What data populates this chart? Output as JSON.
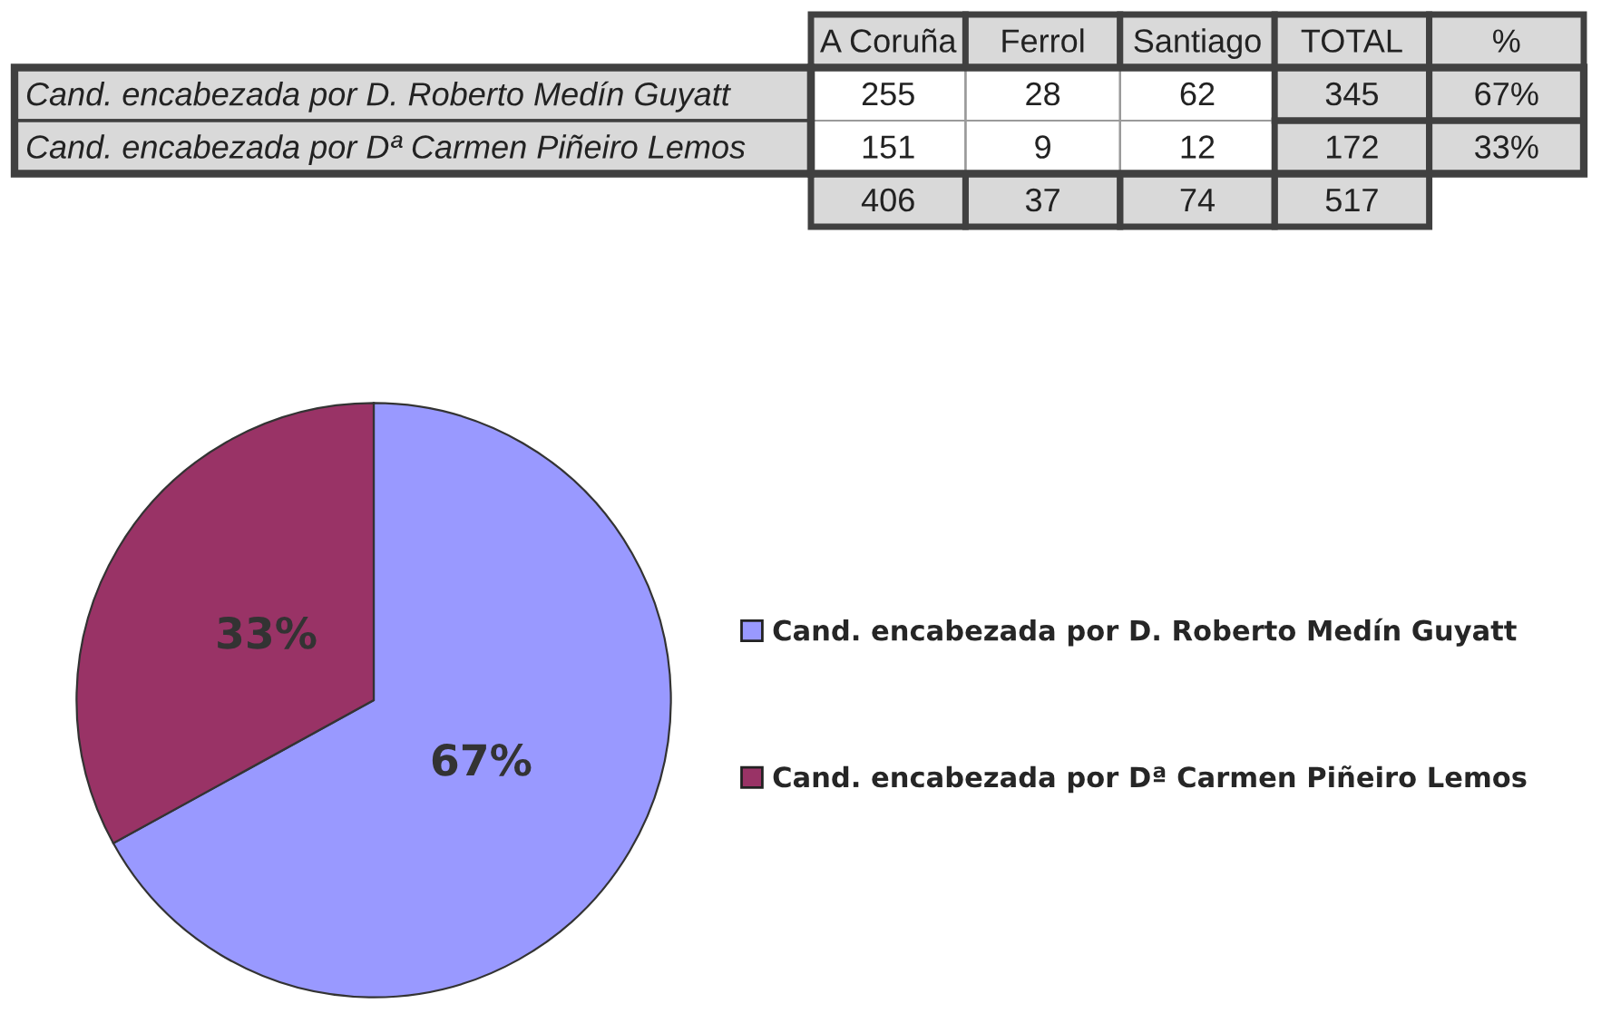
{
  "chart_data": [
    {
      "type": "heatmap",
      "categories": [
        "A Coruña",
        "Ferrol",
        "Santiago",
        "TOTAL",
        "%"
      ],
      "y_categories": [
        "Cand. encabezada por D. Roberto Medín Guyatt",
        "Cand. encabezada por Dª Carmen Piñeiro Lemos",
        null
      ],
      "cells": [
        [
          255,
          28,
          62,
          345,
          67
        ],
        [
          151,
          9,
          12,
          172,
          33
        ],
        [
          406,
          37,
          74,
          517,
          null
        ]
      ],
      "cell_labels": [
        [
          "255",
          "28",
          "62",
          "345",
          "67%"
        ],
        [
          "151",
          "9",
          "12",
          "172",
          "33%"
        ],
        [
          "406",
          "37",
          "74",
          "517",
          null
        ]
      ]
    },
    {
      "type": "pie",
      "categories": [
        "Cand. encabezada por D. Roberto Medín Guyatt",
        "Cand. encabezada por Dª Carmen Piñeiro Lemos"
      ],
      "values": [
        67,
        33
      ],
      "colors": [
        "#9999ff",
        "#993366"
      ],
      "value_labels": [
        "67%",
        "33%"
      ],
      "legend": "right"
    }
  ]
}
